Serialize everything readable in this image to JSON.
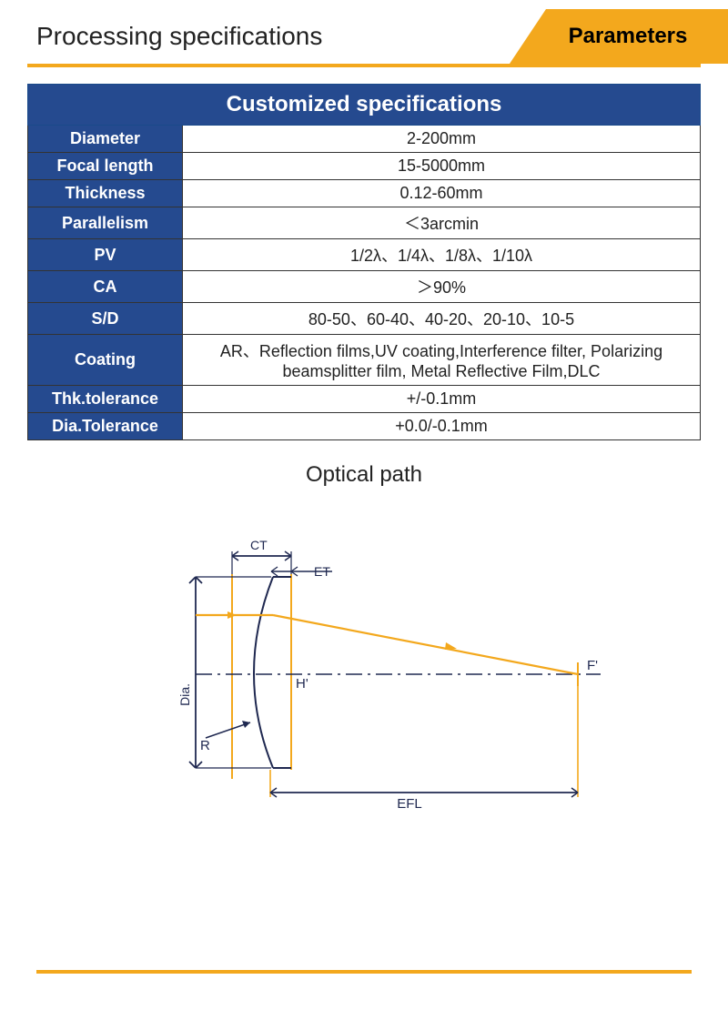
{
  "header": {
    "section_title": "Processing specifications",
    "tab_label": "Parameters"
  },
  "colors": {
    "blue_header": "#254a8f",
    "blue_cell": "#254a8f",
    "orange": "#f3a81d",
    "border": "#222222",
    "line_blue": "#1f3c70",
    "diagram_orange": "#f3a81d",
    "diagram_dark": "#1a1a3a"
  },
  "table": {
    "title": "Customized specifications",
    "rows": [
      {
        "label": "Diameter",
        "value": "2-200mm"
      },
      {
        "label": "Focal length",
        "value": "15-5000mm"
      },
      {
        "label": "Thickness",
        "value": "0.12-60mm"
      },
      {
        "label": "Parallelism",
        "value": "＜3arcmin"
      },
      {
        "label": "PV",
        "value": "1/2λ、1/4λ、1/8λ、1/10λ"
      },
      {
        "label": "CA",
        "value": "＞90%"
      },
      {
        "label": "S/D",
        "value": "80-50、60-40、40-20、20-10、10-5"
      },
      {
        "label": "Coating",
        "value": "AR、Reflection films,UV coating,Interference filter, Polarizing beamsplitter film, Metal Reflective Film,DLC"
      },
      {
        "label": "Thk.tolerance",
        "value": "+/-0.1mm"
      },
      {
        "label": "Dia.Tolerance",
        "value": "+0.0/-0.1mm"
      }
    ]
  },
  "diagram": {
    "title": "Optical path",
    "labels": {
      "ct": "CT",
      "et": "ET",
      "dia": "Dia.",
      "h": "H'",
      "r": "R",
      "f": "F'",
      "efl": "EFL"
    },
    "style": {
      "orange": "#f3a81d",
      "dark": "#1f2850",
      "stroke_width": 1.8
    }
  }
}
